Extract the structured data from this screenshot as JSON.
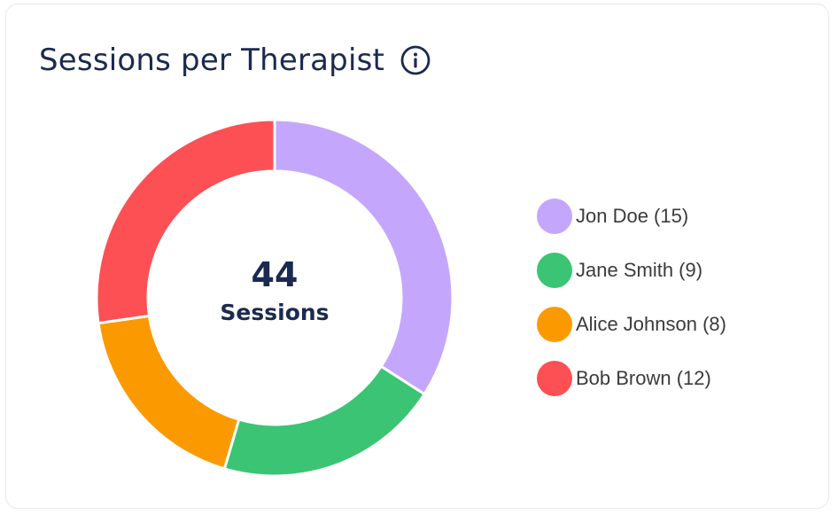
{
  "card": {
    "title": "Sessions per Therapist",
    "info_icon": "info-circle-icon"
  },
  "chart_data": {
    "type": "pie",
    "variant": "donut",
    "title": "Sessions per Therapist",
    "center_value": "44",
    "center_label": "Sessions",
    "legend_position": "right",
    "series": [
      {
        "name": "Jon Doe",
        "value": 15,
        "label": "Jon Doe (15)",
        "color": "#c4a7fc"
      },
      {
        "name": "Jane Smith",
        "value": 9,
        "label": "Jane Smith (9)",
        "color": "#3ac474"
      },
      {
        "name": "Alice Johnson",
        "value": 8,
        "label": "Alice Johnson (8)",
        "color": "#fb9a00"
      },
      {
        "name": "Bob Brown",
        "value": 12,
        "label": "Bob Brown (12)",
        "color": "#fc5054"
      }
    ]
  },
  "colors": {
    "title_text": "#1b2a4e",
    "legend_text": "#3b3b3b"
  }
}
